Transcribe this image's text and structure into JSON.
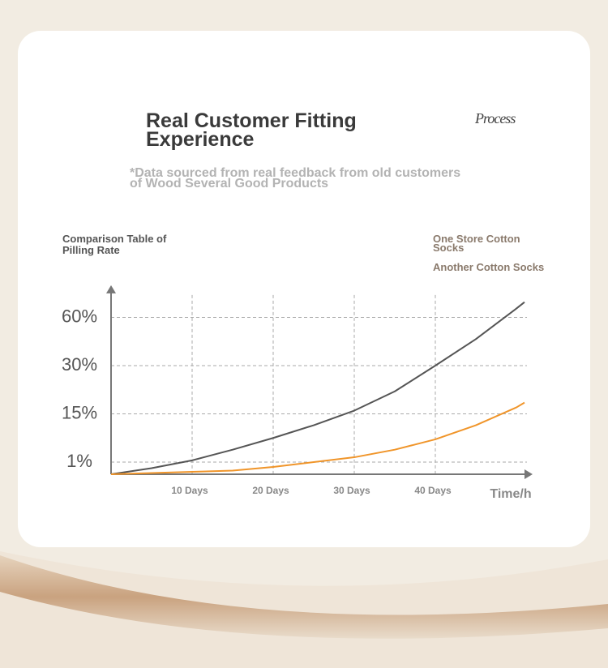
{
  "header": {
    "title": "Real Customer Fitting Experience",
    "badge": "Process",
    "subtitle": "*Data sourced from real feedback from old customers of Wood Several Good Products"
  },
  "chart_data": {
    "type": "line",
    "title": "Comparison Table of Pilling Rate",
    "x_label": "Time/h",
    "x": [
      0,
      5,
      10,
      15,
      20,
      25,
      30,
      35,
      40,
      45,
      50,
      51
    ],
    "series": [
      {
        "name": "One Store Cotton Socks",
        "color": "#555555",
        "values": [
          0,
          0.5,
          1.5,
          4.6,
          8,
          11.7,
          16,
          22,
          30,
          46.5,
          65.5,
          69.5
        ]
      },
      {
        "name": "Another Cotton Socks",
        "color": "#f0952a",
        "values": [
          0,
          0.1,
          0.2,
          0.3,
          0.6,
          1,
          2.4,
          4.6,
          7.6,
          11.7,
          17,
          18.5
        ]
      }
    ],
    "xlim": [
      0,
      52
    ],
    "xticks": [
      {
        "value": 10,
        "label": "10 Days"
      },
      {
        "value": 20,
        "label": "20 Days"
      },
      {
        "value": 30,
        "label": "30 Days"
      },
      {
        "value": 40,
        "label": "40 Days"
      }
    ],
    "ylim": [
      0,
      80
    ],
    "yticks": [
      {
        "value": 1,
        "label": "1%"
      },
      {
        "value": 15,
        "label": "15%"
      },
      {
        "value": 30,
        "label": "30%"
      },
      {
        "value": 60,
        "label": "60%"
      }
    ],
    "grid": true
  }
}
